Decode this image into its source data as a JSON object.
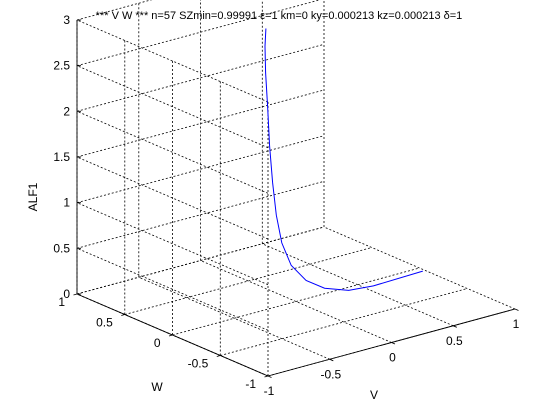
{
  "window": {
    "title": "*** V W *** n=57 SZmin=0.99991 ε=1 km=0 ky=0.000213 kz=0.000213 δ=1"
  },
  "colors": {
    "background": "#ffffff",
    "axes": "#000000",
    "grid": "#000000",
    "series": "#0000ff"
  },
  "chart_data": {
    "type": "line",
    "projection": "3d",
    "title": "*** V W *** n=57 SZmin=0.99991 ε=1 km=0 ky=0.000213 kz=0.000213 δ=1",
    "xlabel": "V",
    "ylabel": "W",
    "zlabel": "ALF1",
    "xlim": [
      -1,
      1
    ],
    "ylim": [
      -1,
      1
    ],
    "zlim": [
      0,
      3
    ],
    "x_ticks": [
      "-1",
      "-0.5",
      "0",
      "0.5",
      "1"
    ],
    "y_ticks": [
      "-1",
      "-0.5",
      "0",
      "0.5",
      "1"
    ],
    "z_ticks": [
      "0",
      "0.5",
      "1",
      "1.5",
      "2",
      "2.5",
      "3"
    ],
    "grid": true,
    "series": [
      {
        "color": "#0000ff",
        "points": [
          {
            "x": 0.98,
            "y": -0.06,
            "z": 0.0
          },
          {
            "x": 0.48,
            "y": -0.19,
            "z": 0.08
          },
          {
            "x": 0.21,
            "y": -0.28,
            "z": 0.17
          },
          {
            "x": 0.0,
            "y": -0.3,
            "z": 0.28
          },
          {
            "x": -0.15,
            "y": -0.3,
            "z": 0.42
          },
          {
            "x": -0.24,
            "y": -0.26,
            "z": 0.6
          },
          {
            "x": -0.27,
            "y": -0.2,
            "z": 0.83
          },
          {
            "x": -0.26,
            "y": -0.13,
            "z": 1.1
          },
          {
            "x": -0.22,
            "y": -0.04,
            "z": 1.4
          },
          {
            "x": -0.16,
            "y": 0.07,
            "z": 1.73
          },
          {
            "x": -0.09,
            "y": 0.18,
            "z": 2.07
          },
          {
            "x": -0.03,
            "y": 0.28,
            "z": 2.39
          },
          {
            "x": 0.02,
            "y": 0.35,
            "z": 2.63
          },
          {
            "x": 0.05,
            "y": 0.38,
            "z": 2.8
          }
        ]
      }
    ]
  }
}
